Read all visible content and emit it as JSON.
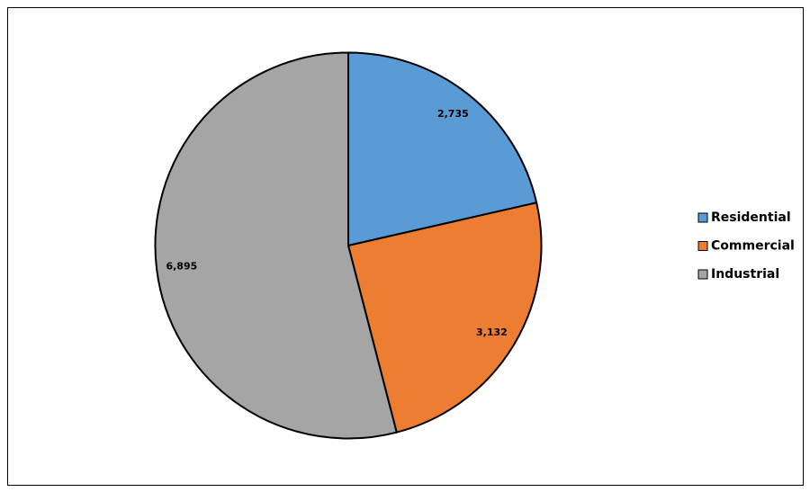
{
  "chart_data": {
    "type": "pie",
    "categories": [
      "Residential",
      "Commercial",
      "Industrial"
    ],
    "values": [
      2735,
      3132,
      6895
    ],
    "value_labels": [
      "2,735",
      "3,132",
      "6,895"
    ],
    "colors": [
      "#5b9bd5",
      "#ed7d31",
      "#a5a5a5"
    ],
    "legend": "right"
  }
}
